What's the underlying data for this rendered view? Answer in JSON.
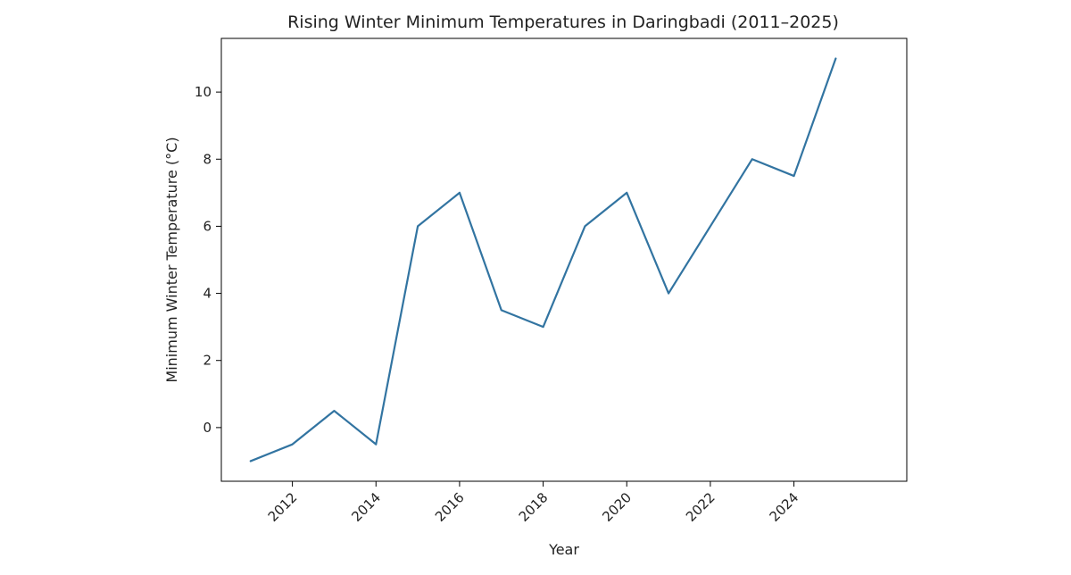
{
  "chart_data": {
    "type": "line",
    "title": "Rising Winter Minimum Temperatures in Daringbadi (2011–2025)",
    "xlabel": "Year",
    "ylabel": "Minimum Winter Temperature (°C)",
    "x": [
      2011,
      2012,
      2013,
      2014,
      2015,
      2016,
      2017,
      2018,
      2019,
      2020,
      2021,
      2022,
      2023,
      2024,
      2025
    ],
    "series": [
      {
        "name": "Minimum Winter Temperature",
        "values": [
          -1.0,
          -0.5,
          0.5,
          -0.5,
          6.0,
          7.0,
          3.5,
          3.0,
          6.0,
          7.0,
          4.0,
          6.0,
          8.0,
          7.5,
          11.0
        ],
        "color": "#3274a1"
      }
    ],
    "xlim": [
      2010.3,
      2026.7
    ],
    "ylim": [
      -1.6,
      11.6
    ],
    "xticks": [
      2012,
      2014,
      2016,
      2018,
      2020,
      2022,
      2024
    ],
    "yticks": [
      0,
      2,
      4,
      6,
      8,
      10
    ],
    "grid": false,
    "legend": "none"
  }
}
